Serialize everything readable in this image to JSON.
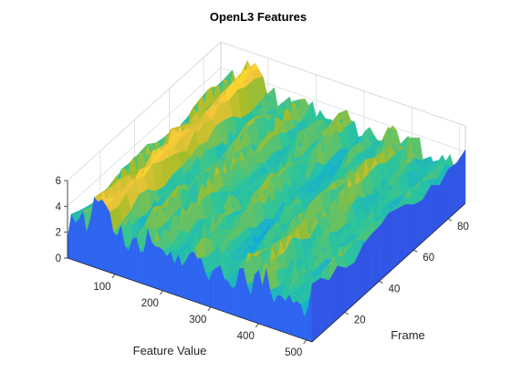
{
  "chart_data": {
    "type": "surface3d",
    "title": "OpenL3 Features",
    "xlabel": "Feature Value",
    "ylabel": "Frame",
    "zlabel": "",
    "xlim": [
      1,
      512
    ],
    "ylim": [
      1,
      90
    ],
    "zlim": [
      0,
      6
    ],
    "x_ticks": [
      100,
      200,
      300,
      400,
      500
    ],
    "y_ticks": [
      20,
      40,
      60,
      80
    ],
    "z_ticks": [
      0,
      2,
      4,
      6
    ],
    "grid": true,
    "colormap": "parula",
    "colormap_stops": [
      "#3e26a8",
      "#2f5ff2",
      "#13aed5",
      "#2ec598",
      "#a6bd27",
      "#f6c53b",
      "#f9fb15"
    ],
    "surface_profile": {
      "description": "approximate feature value profile across feature index (average over frames)",
      "x": [
        1,
        20,
        40,
        50,
        70,
        90,
        100,
        120,
        140,
        160,
        170,
        200,
        230,
        260,
        300,
        330,
        360,
        400,
        430,
        460,
        490,
        512
      ],
      "z": [
        1.6,
        2.4,
        3.3,
        2.8,
        5.2,
        4.8,
        3.1,
        2.0,
        3.6,
        2.2,
        4.0,
        2.8,
        2.3,
        3.2,
        2.4,
        3.0,
        2.5,
        2.9,
        2.3,
        2.7,
        2.2,
        2.4
      ]
    }
  }
}
